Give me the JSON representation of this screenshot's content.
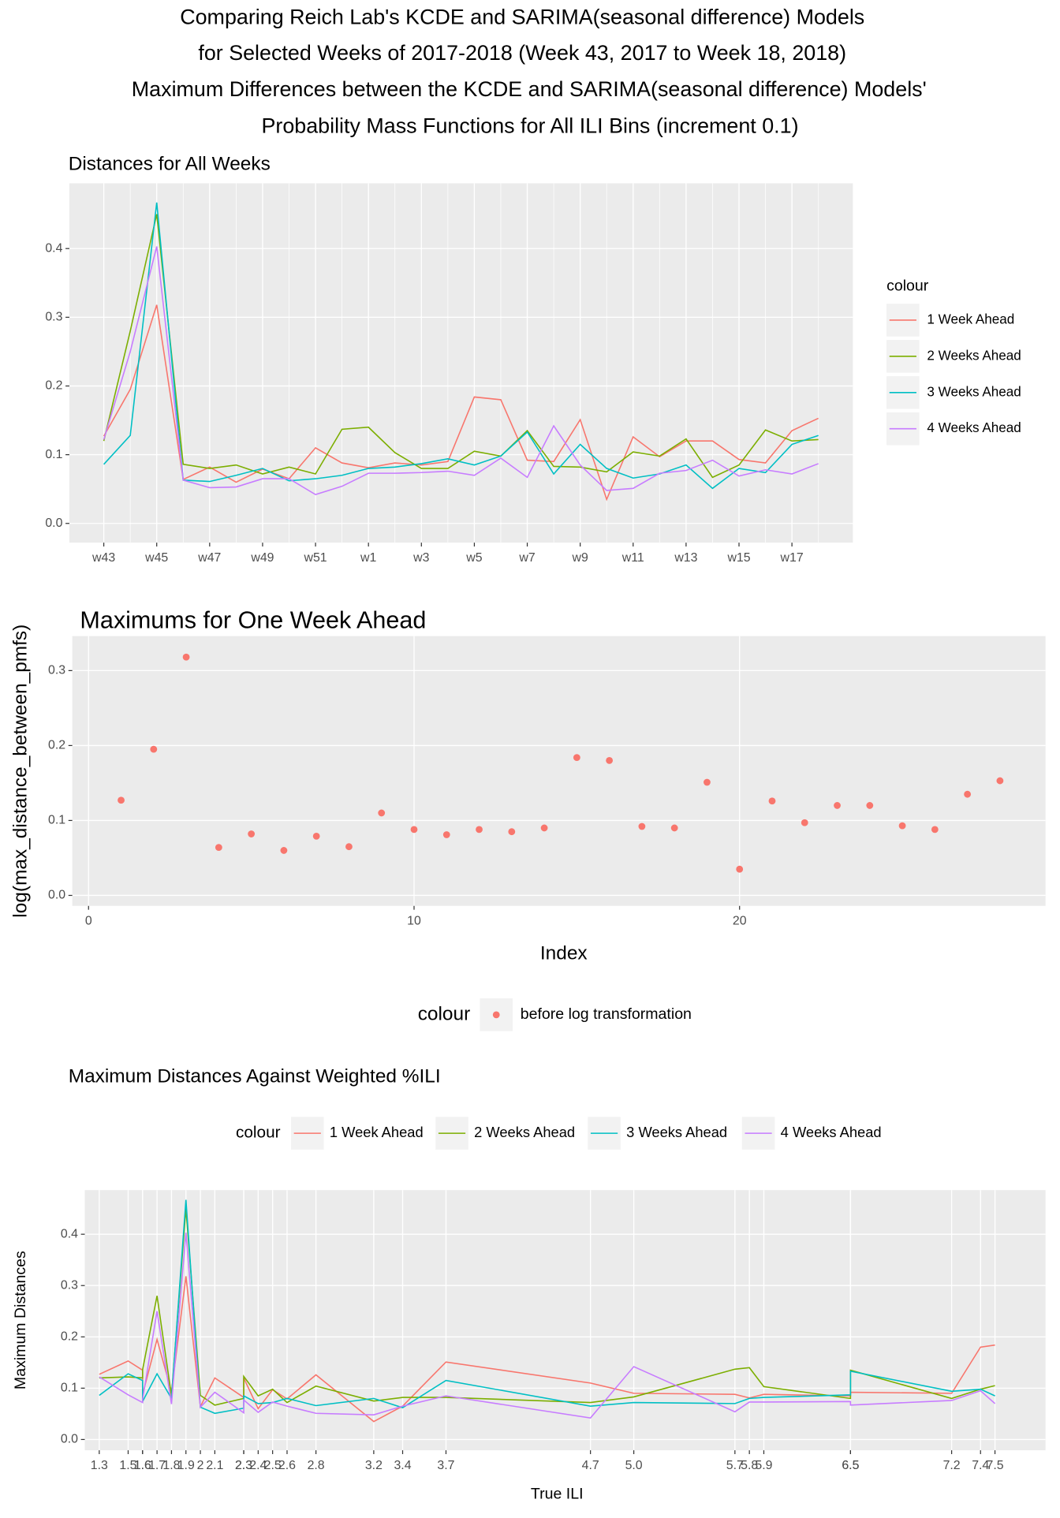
{
  "header": {
    "title_lines": [
      "Comparing Reich Lab's KCDE and SARIMA(seasonal difference) Models",
      "for Selected Weeks of 2017-2018 (Week 43, 2017 to Week 18, 2018)",
      "Maximum Differences between the KCDE and SARIMA(seasonal difference) Models'",
      "Probability Mass Functions for All ILI Bins (increment 0.1)"
    ]
  },
  "chart_data": [
    {
      "type": "line",
      "title": "Distances for All Weeks",
      "categories": [
        "w43",
        null,
        "w45",
        null,
        "w47",
        null,
        "w49",
        null,
        "w51",
        null,
        "w1",
        null,
        "w3",
        null,
        "w5",
        null,
        "w7",
        null,
        "w9",
        null,
        "w11",
        null,
        "w13",
        null,
        "w15",
        null,
        "w17",
        null
      ],
      "series": [
        {
          "name": "1 Week Ahead",
          "color": "#F8766D",
          "values": [
            0.127,
            0.195,
            0.318,
            0.064,
            0.082,
            0.06,
            0.079,
            0.065,
            0.11,
            0.088,
            0.081,
            0.088,
            0.085,
            0.09,
            0.184,
            0.18,
            0.092,
            0.09,
            0.151,
            0.035,
            0.126,
            0.097,
            0.12,
            0.12,
            0.093,
            0.088,
            0.135,
            0.153
          ]
        },
        {
          "name": "2 Weeks Ahead",
          "color": "#7CAE00",
          "values": [
            0.12,
            0.28,
            0.45,
            0.086,
            0.08,
            0.085,
            0.072,
            0.082,
            0.072,
            0.137,
            0.14,
            0.103,
            0.08,
            0.08,
            0.105,
            0.098,
            0.135,
            0.083,
            0.082,
            0.075,
            0.104,
            0.098,
            0.123,
            0.067,
            0.085,
            0.136,
            0.12,
            0.122
          ]
        },
        {
          "name": "3 Weeks Ahead",
          "color": "#00BFC4",
          "values": [
            0.086,
            0.128,
            0.467,
            0.063,
            0.061,
            0.07,
            0.08,
            0.062,
            0.065,
            0.07,
            0.08,
            0.082,
            0.087,
            0.094,
            0.085,
            0.098,
            0.133,
            0.072,
            0.115,
            0.08,
            0.066,
            0.072,
            0.085,
            0.051,
            0.08,
            0.074,
            0.115,
            0.128
          ]
        },
        {
          "name": "4 Weeks Ahead",
          "color": "#C77CFF",
          "values": [
            0.122,
            0.25,
            0.403,
            0.063,
            0.052,
            0.053,
            0.065,
            0.065,
            0.042,
            0.054,
            0.073,
            0.073,
            0.074,
            0.076,
            0.07,
            0.095,
            0.067,
            0.142,
            0.085,
            0.048,
            0.051,
            0.073,
            0.077,
            0.092,
            0.069,
            0.078,
            0.072,
            0.087
          ]
        }
      ],
      "ylim": [
        -0.028,
        0.495
      ],
      "yticks": [
        {
          "value": 0,
          "label": "0.0"
        },
        0.1,
        0.2,
        0.3,
        0.4
      ],
      "legend_title": "colour",
      "legend": "right",
      "grid": true
    },
    {
      "type": "scatter",
      "title": "Maximums for One Week Ahead",
      "x": [
        1,
        2,
        3,
        4,
        5,
        6,
        7,
        8,
        9,
        10,
        11,
        12,
        13,
        14,
        15,
        16,
        17,
        18,
        19,
        20,
        21,
        22,
        23,
        24,
        25,
        26,
        27,
        28
      ],
      "series": [
        {
          "name": "before log transformation",
          "color": "#F8766D",
          "values": [
            0.127,
            0.195,
            0.318,
            0.064,
            0.082,
            0.06,
            0.079,
            0.065,
            0.11,
            0.088,
            0.081,
            0.088,
            0.085,
            0.09,
            0.184,
            0.18,
            0.092,
            0.09,
            0.151,
            0.035,
            0.126,
            0.097,
            0.12,
            0.12,
            0.093,
            0.088,
            0.135,
            0.153
          ]
        }
      ],
      "xlabel": "Index",
      "ylabel": "log(max_distance_between_pmfs)",
      "xlim": [
        -0.5,
        29.4
      ],
      "ylim": [
        -0.014,
        0.346
      ],
      "xticks": [
        0,
        10,
        20
      ],
      "yticks": [
        {
          "value": 0,
          "label": "0.0"
        },
        0.1,
        0.2,
        0.3
      ],
      "legend_title": "colour",
      "legend": "bottom",
      "grid": true
    },
    {
      "type": "line",
      "title": "Maximum Distances Against Weighted %ILI",
      "x": [
        1.3,
        1.5,
        1.6,
        1.6,
        1.7,
        1.8,
        1.9,
        2,
        2.1,
        2.3,
        2.3,
        2.4,
        2.5,
        2.6,
        2.8,
        3.2,
        3.4,
        3.7,
        4.7,
        5.0,
        5.7,
        5.8,
        5.9,
        6.5,
        6.5,
        7.2,
        7.4,
        7.5
      ],
      "series": [
        {
          "name": "1 Week Ahead",
          "color": "#F8766D",
          "values": [
            0.127,
            0.153,
            0.135,
            0.088,
            0.195,
            0.093,
            0.318,
            0.064,
            0.12,
            0.082,
            0.12,
            0.06,
            0.097,
            0.079,
            0.126,
            0.035,
            0.065,
            0.151,
            0.11,
            0.09,
            0.088,
            0.081,
            0.088,
            0.085,
            0.092,
            0.09,
            0.18,
            0.184
          ]
        },
        {
          "name": "2 Weeks Ahead",
          "color": "#7CAE00",
          "values": [
            0.12,
            0.122,
            0.12,
            0.136,
            0.28,
            0.085,
            0.45,
            0.086,
            0.067,
            0.08,
            0.123,
            0.085,
            0.098,
            0.072,
            0.104,
            0.075,
            0.082,
            0.082,
            0.072,
            0.083,
            0.137,
            0.14,
            0.103,
            0.08,
            0.135,
            0.08,
            0.098,
            0.105
          ]
        },
        {
          "name": "3 Weeks Ahead",
          "color": "#00BFC4",
          "values": [
            0.086,
            0.128,
            0.115,
            0.074,
            0.128,
            0.08,
            0.467,
            0.063,
            0.051,
            0.061,
            0.085,
            0.07,
            0.072,
            0.08,
            0.066,
            0.08,
            0.062,
            0.115,
            0.065,
            0.072,
            0.07,
            0.08,
            0.082,
            0.087,
            0.133,
            0.094,
            0.098,
            0.085
          ]
        },
        {
          "name": "4 Weeks Ahead",
          "color": "#C77CFF",
          "values": [
            0.122,
            0.087,
            0.072,
            0.078,
            0.25,
            0.069,
            0.403,
            0.063,
            0.092,
            0.052,
            0.077,
            0.053,
            0.073,
            0.065,
            0.051,
            0.048,
            0.065,
            0.085,
            0.042,
            0.142,
            0.054,
            0.073,
            0.073,
            0.074,
            0.067,
            0.076,
            0.095,
            0.07
          ]
        }
      ],
      "xlabel": "True ILI",
      "ylabel": "Maximum Distances",
      "xlim": [
        1.2,
        7.85
      ],
      "ylim": [
        -0.021,
        0.486
      ],
      "xticks": [
        1.3,
        1.5,
        1.6,
        1.6,
        1.7,
        1.8,
        1.9,
        2,
        2.1,
        2.3,
        2.3,
        2.4,
        2.5,
        2.6,
        2.8,
        3.2,
        3.4,
        3.7,
        4.7,
        {
          "value": 5,
          "label": "5.0"
        },
        5.7,
        5.8,
        5.9,
        6.5,
        6.5,
        7.2,
        7.4,
        7.5
      ],
      "yticks": [
        {
          "value": 0,
          "label": "0.0"
        },
        0.1,
        0.2,
        0.3,
        0.4
      ],
      "legend_title": "colour",
      "legend": "top",
      "grid": true
    }
  ]
}
